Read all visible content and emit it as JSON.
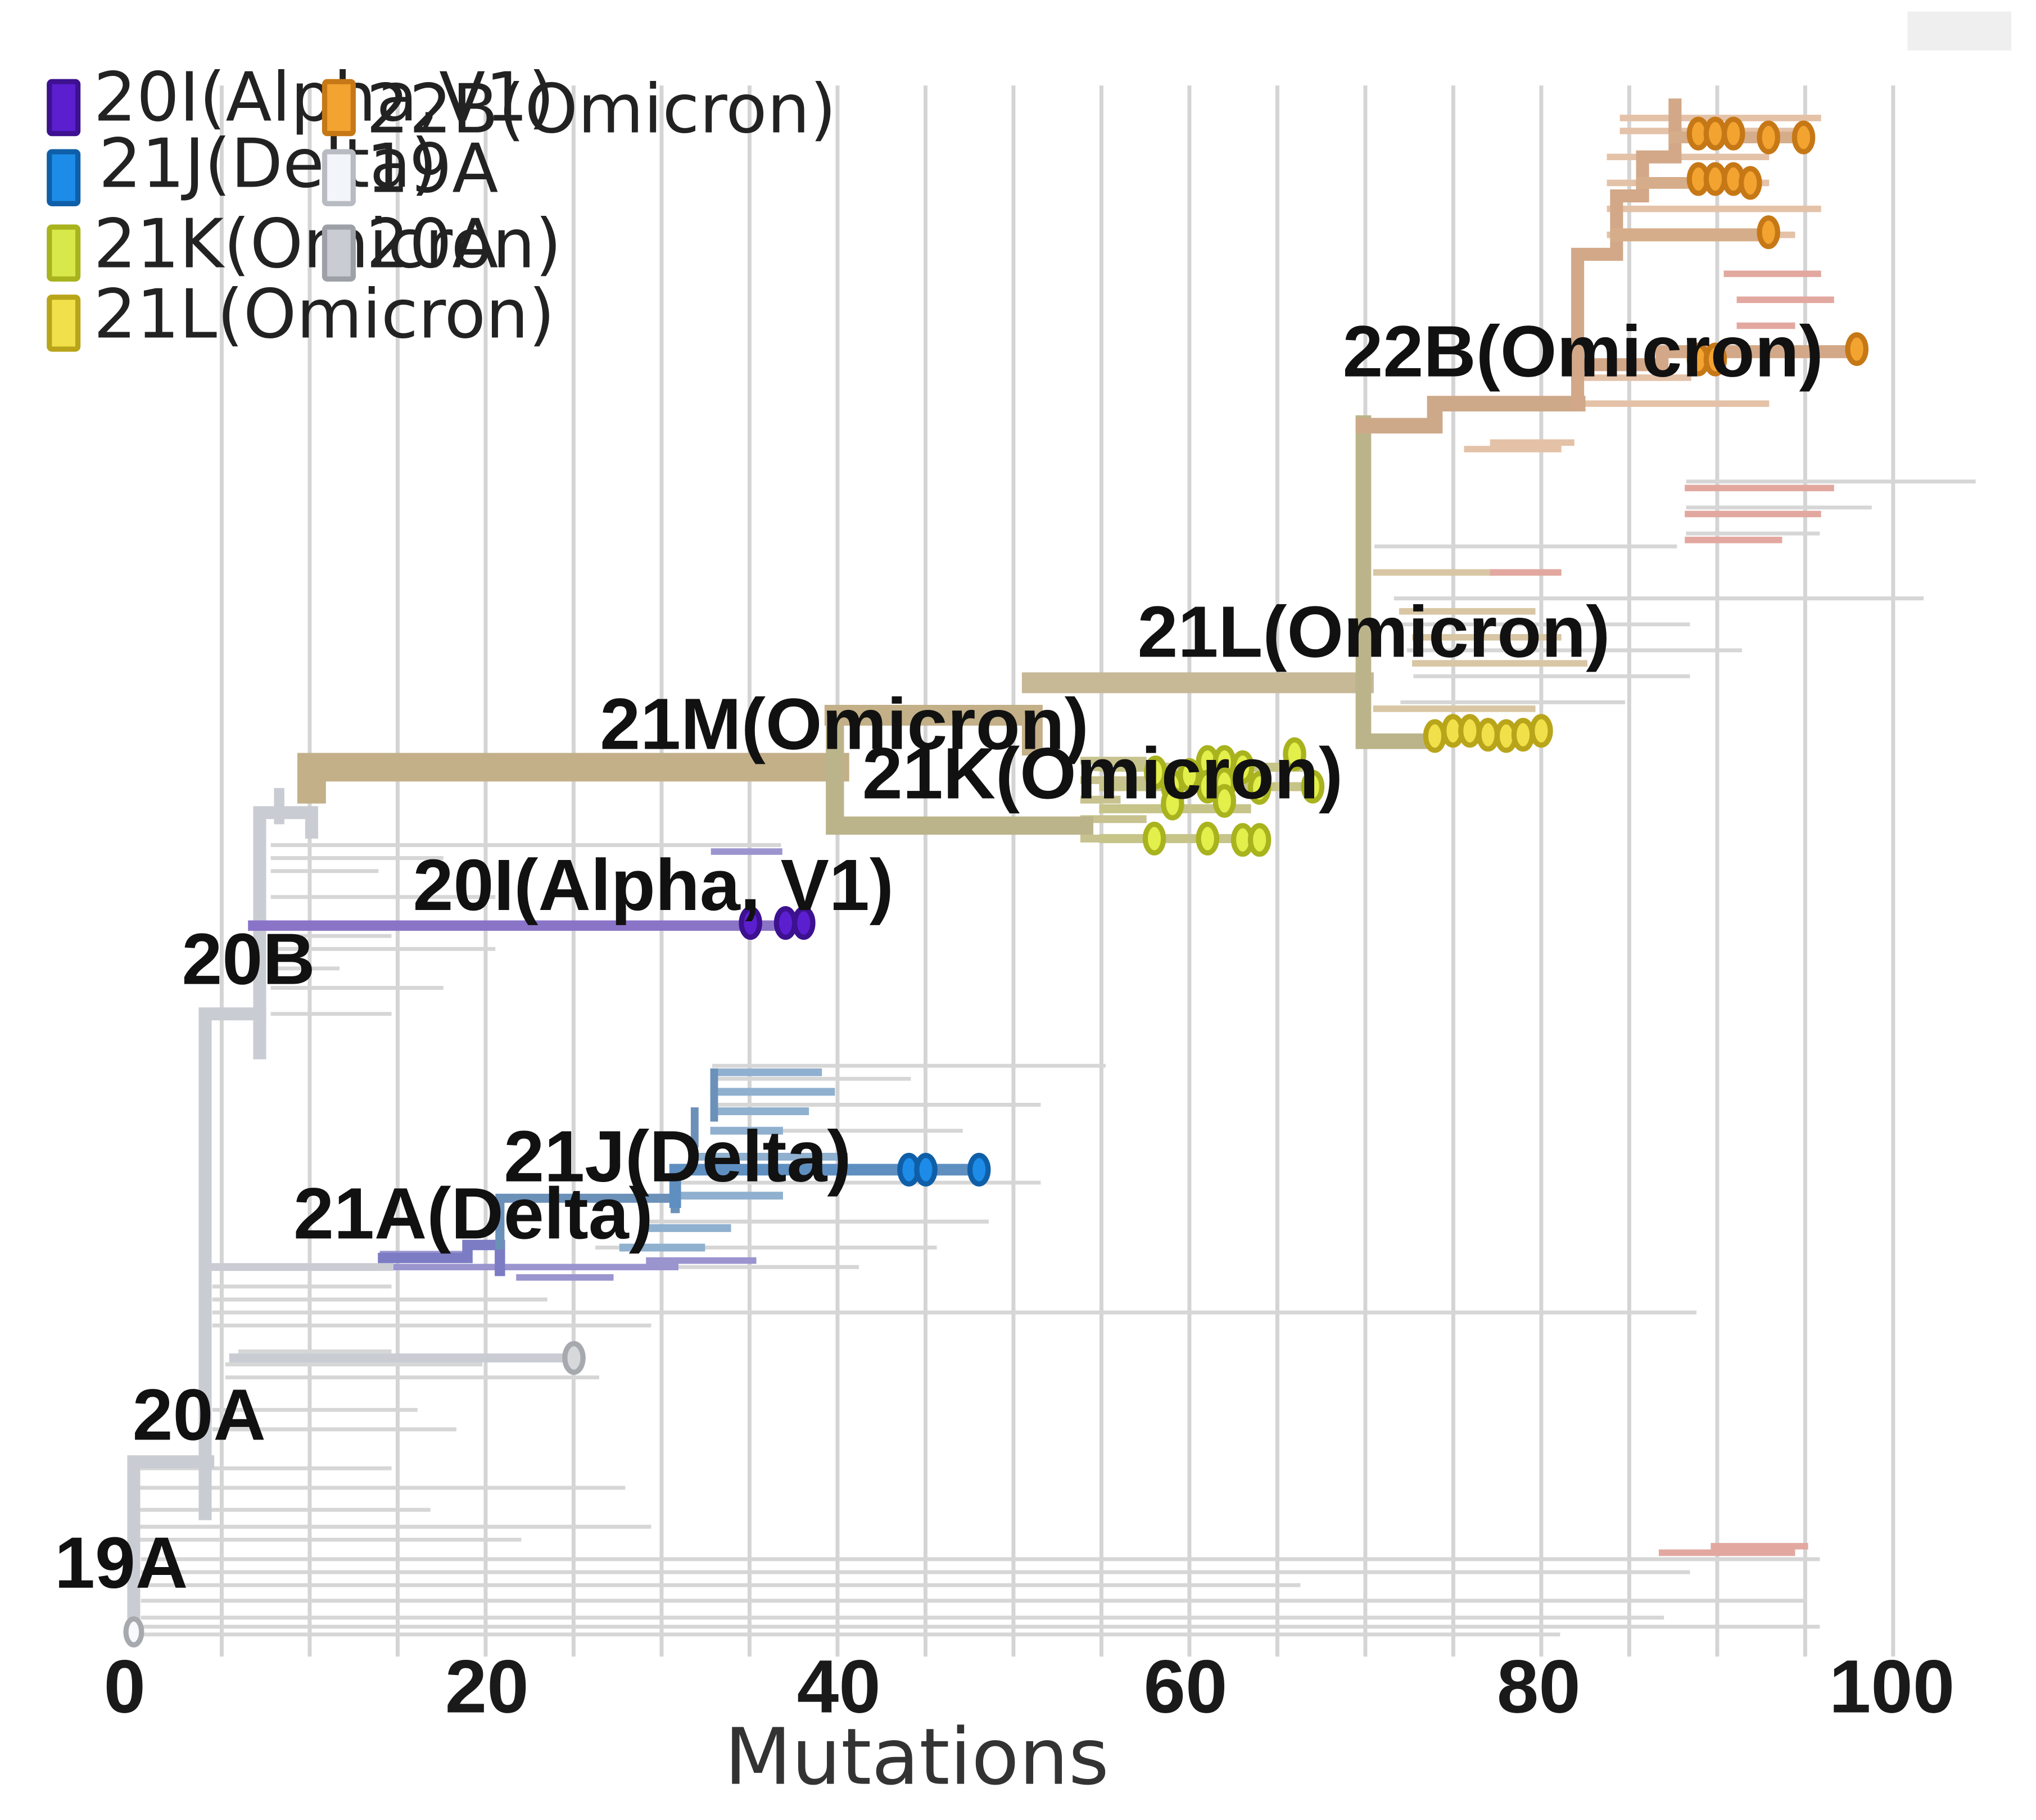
{
  "chart_data": {
    "type": "phylogenetic-tree",
    "xlabel": "Mutations",
    "xlim": [
      0,
      103
    ],
    "xticks": [
      0,
      20,
      40,
      60,
      80,
      100
    ],
    "grid": true,
    "legend": [
      {
        "label": "20I(Alpha,V1)",
        "color": "#5b1fd0"
      },
      {
        "label": "21J(Delta)",
        "color": "#1c8ce8"
      },
      {
        "label": "21K(Omicron)",
        "color": "#d8e84a"
      },
      {
        "label": "21L(Omicron)",
        "color": "#f2e04a"
      },
      {
        "label": "22B(Omicron)",
        "color": "#f3a330"
      },
      {
        "label": "19A",
        "color": "#f2f5fa"
      },
      {
        "label": "20A",
        "color": "#c9cdd3"
      }
    ],
    "legend_position": "top-left",
    "clade_labels": [
      {
        "label": "19A",
        "x": 0
      },
      {
        "label": "20A",
        "x": 0.5
      },
      {
        "label": "20B",
        "x": 4
      },
      {
        "label": "20I(Alpha, V1)",
        "x": 16
      },
      {
        "label": "21A(Delta)",
        "x": 10
      },
      {
        "label": "21J(Delta)",
        "x": 21.5
      },
      {
        "label": "21M(Omicron)",
        "x": 27
      },
      {
        "label": "21K(Omicron)",
        "x": 42
      },
      {
        "label": "21L(Omicron)",
        "x": 57
      },
      {
        "label": "22B(Omicron)",
        "x": 69
      }
    ],
    "highlighted_tips": [
      {
        "clade": "20I(Alpha,V1)",
        "color": "#5b1fd0",
        "mutations": [
          35,
          37,
          38
        ]
      },
      {
        "clade": "21J(Delta)",
        "color": "#1c8ce8",
        "mutations": [
          44,
          45,
          48
        ]
      },
      {
        "clade": "21K(Omicron)",
        "color": "#d8e84a",
        "mutations": [
          58,
          59,
          60,
          61,
          62,
          63,
          64,
          66,
          67,
          58,
          61,
          63,
          64
        ]
      },
      {
        "clade": "21L(Omicron)",
        "color": "#f2e04a",
        "mutations": [
          74,
          75,
          76,
          77,
          78,
          79,
          80
        ]
      },
      {
        "clade": "22B(Omicron)",
        "color": "#f3a330",
        "mutations": [
          89,
          90,
          91,
          93,
          95,
          89,
          90,
          91,
          92,
          93,
          93,
          89,
          90,
          98
        ]
      },
      {
        "clade": "20A",
        "color": "#c9cdd3",
        "mutations": [
          25
        ]
      },
      {
        "clade": "19A",
        "color": "#f2f5fa",
        "mutations": [
          0
        ]
      }
    ]
  }
}
